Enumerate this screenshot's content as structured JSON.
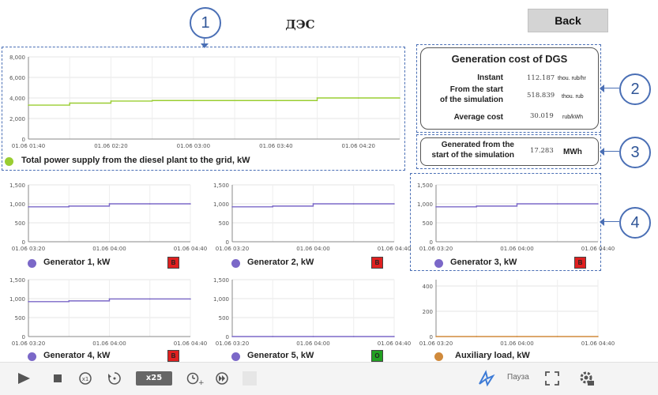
{
  "header": {
    "title": "ДЭС",
    "back_label": "Back"
  },
  "callouts": [
    "1",
    "2",
    "3",
    "4"
  ],
  "cost_panel": {
    "title": "Generation cost of DGS",
    "rows": [
      {
        "label": "Instant",
        "value": "112.187",
        "unit": "thou. rub/hr"
      },
      {
        "label": "From the start of the simulation",
        "label_line1": "From the start",
        "label_line2": "of the simulation",
        "value": "518.839",
        "unit": "thou. rub"
      },
      {
        "label": "Average cost",
        "value": "30.019",
        "unit": "rub/kWh"
      }
    ]
  },
  "generated_panel": {
    "label_line1": "Generated from the",
    "label_line2": "start of the simulation",
    "value": "17.283",
    "unit": "MWh"
  },
  "colors": {
    "accent": "#4a6fb5",
    "power_series": "#9acd32",
    "generator_series": "#7b68c8",
    "aux_series": "#d08a3c",
    "badge_red": "#e02020",
    "badge_green": "#22a022"
  },
  "bottom_controls": {
    "speed": "x25",
    "pause": "Пауза",
    "icons": [
      "play-icon",
      "stop-icon",
      "speed-x1-icon",
      "rewind-icon",
      "x25-badge",
      "add-time-icon",
      "fast-forward-icon",
      "blank-button",
      "logo-icon",
      "fullscreen-icon",
      "settings-icon"
    ]
  },
  "chart_data": [
    {
      "type": "line",
      "title": "Total power supply from the diesel plant to the grid, kW",
      "legend_color": "#9acd32",
      "x": [
        "01.06 01:40",
        "01.06 02:00",
        "01.06 02:20",
        "01.06 02:40",
        "01.06 03:00",
        "01.06 03:20",
        "01.06 03:40",
        "01.06 04:00",
        "01.06 04:20",
        "01.06 04:40"
      ],
      "xticks": [
        "01.06 01:40",
        "01.06 02:20",
        "01.06 03:00",
        "01.06 03:40",
        "01.06 04:20"
      ],
      "values": [
        3300,
        3500,
        3700,
        3750,
        3750,
        3750,
        3750,
        4000,
        4000,
        4000
      ],
      "yticks": [
        0,
        2000,
        4000,
        6000,
        8000
      ],
      "ytick_labels": [
        "0",
        "2,000",
        "4,000",
        "6,000",
        "8,000"
      ],
      "ylim": [
        0,
        8000
      ]
    },
    {
      "type": "line",
      "title": "Generator 1, kW",
      "legend_color": "#7b68c8",
      "badge": "В",
      "badge_color": "#e02020",
      "x": [
        "01.06 03:20",
        "01.06 03:40",
        "01.06 04:00",
        "01.06 04:20",
        "01.06 04:40"
      ],
      "xticks": [
        "01.06 03:20",
        "01.06 04:00",
        "01.06 04:40"
      ],
      "values": [
        920,
        940,
        1000,
        1000,
        1000
      ],
      "yticks": [
        0,
        500,
        1000,
        1500
      ],
      "ytick_labels": [
        "0",
        "500",
        "1,000",
        "1,500"
      ],
      "ylim": [
        0,
        1500
      ]
    },
    {
      "type": "line",
      "title": "Generator 2, kW",
      "legend_color": "#7b68c8",
      "badge": "В",
      "badge_color": "#e02020",
      "x": [
        "01.06 03:20",
        "01.06 03:40",
        "01.06 04:00",
        "01.06 04:20",
        "01.06 04:40"
      ],
      "xticks": [
        "01.06 03:20",
        "01.06 04:00",
        "01.06 04:40"
      ],
      "values": [
        920,
        940,
        1000,
        1000,
        1000
      ],
      "yticks": [
        0,
        500,
        1000,
        1500
      ],
      "ytick_labels": [
        "0",
        "500",
        "1,000",
        "1,500"
      ],
      "ylim": [
        0,
        1500
      ]
    },
    {
      "type": "line",
      "title": "Generator 3, kW",
      "legend_color": "#7b68c8",
      "badge": "В",
      "badge_color": "#e02020",
      "x": [
        "01.06 03:20",
        "01.06 03:40",
        "01.06 04:00",
        "01.06 04:20",
        "01.06 04:40"
      ],
      "xticks": [
        "01.06 03:20",
        "01.06 04:00",
        "01.06 04:40"
      ],
      "values": [
        920,
        940,
        1000,
        1000,
        1000
      ],
      "yticks": [
        0,
        500,
        1000,
        1500
      ],
      "ytick_labels": [
        "0",
        "500",
        "1,000",
        "1,500"
      ],
      "ylim": [
        0,
        1500
      ]
    },
    {
      "type": "line",
      "title": "Generator 4, kW",
      "legend_color": "#7b68c8",
      "badge": "В",
      "badge_color": "#e02020",
      "x": [
        "01.06 03:20",
        "01.06 03:40",
        "01.06 04:00",
        "01.06 04:20",
        "01.06 04:40"
      ],
      "xticks": [
        "01.06 03:20",
        "01.06 04:00",
        "01.06 04:40"
      ],
      "values": [
        920,
        940,
        990,
        990,
        990
      ],
      "yticks": [
        0,
        500,
        1000,
        1500
      ],
      "ytick_labels": [
        "0",
        "500",
        "1,000",
        "1,500"
      ],
      "ylim": [
        0,
        1500
      ]
    },
    {
      "type": "line",
      "title": "Generator 5, kW",
      "legend_color": "#7b68c8",
      "badge": "О",
      "badge_color": "#22a022",
      "x": [
        "01.06 03:20",
        "01.06 03:40",
        "01.06 04:00",
        "01.06 04:20",
        "01.06 04:40"
      ],
      "xticks": [
        "01.06 03:20",
        "01.06 04:00",
        "01.06 04:40"
      ],
      "values": [
        0,
        0,
        0,
        0,
        0
      ],
      "yticks": [
        0,
        500,
        1000,
        1500
      ],
      "ytick_labels": [
        "0",
        "500",
        "1,000",
        "1,500"
      ],
      "ylim": [
        0,
        1500
      ]
    },
    {
      "type": "line",
      "title": "Auxiliary load, kW",
      "legend_color": "#d08a3c",
      "x": [
        "01.06 03:20",
        "01.06 03:40",
        "01.06 04:00",
        "01.06 04:20",
        "01.06 04:40"
      ],
      "xticks": [
        "01.06 03:20",
        "01.06 04:00",
        "01.06 04:40"
      ],
      "values": [
        0,
        0,
        0,
        0,
        0
      ],
      "yticks": [
        0,
        200,
        400
      ],
      "ytick_labels": [
        "0",
        "200",
        "400"
      ],
      "ylim": [
        0,
        450
      ]
    }
  ]
}
